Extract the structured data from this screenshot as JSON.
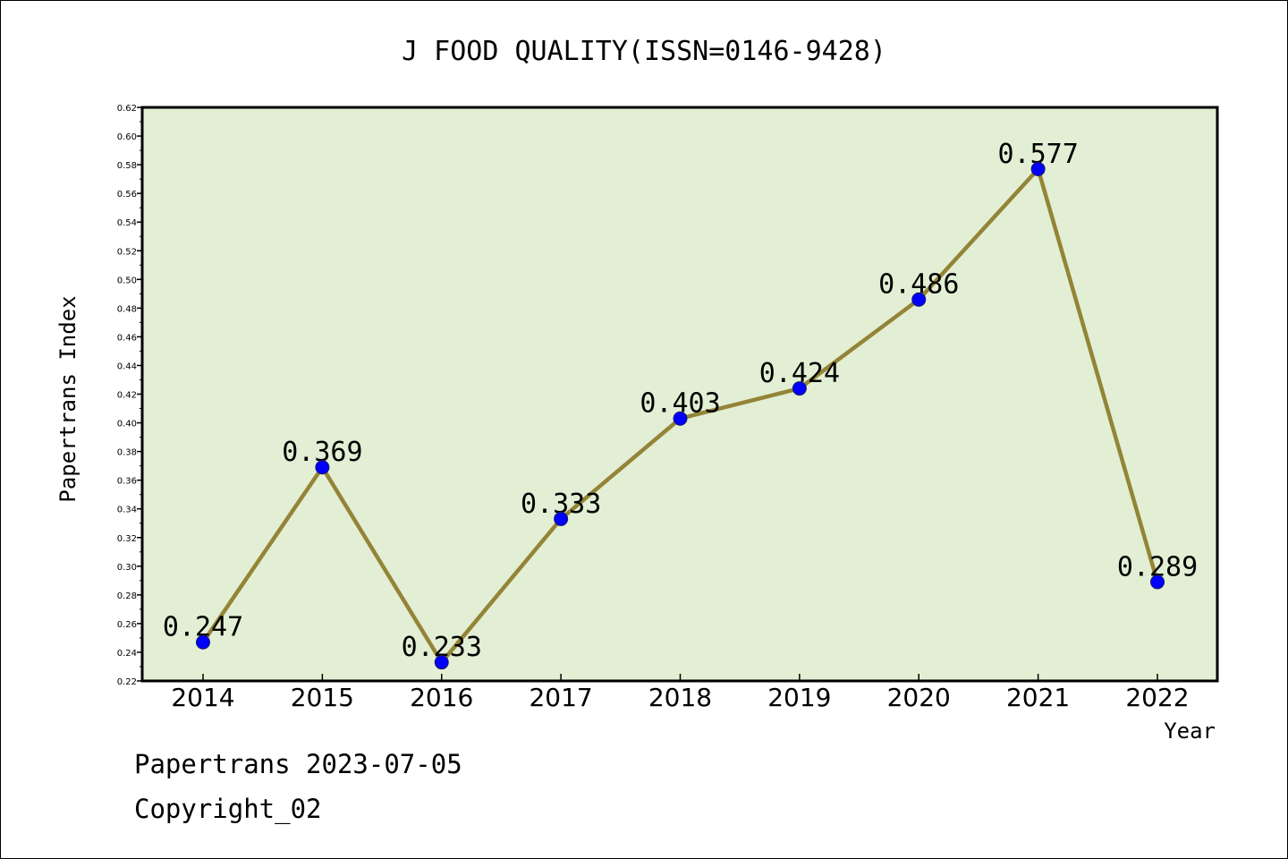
{
  "chart_data": {
    "type": "line",
    "title": "J FOOD QUALITY(ISSN=0146-9428)",
    "xlabel": "Year",
    "ylabel": "Papertrans Index",
    "categories": [
      "2014",
      "2015",
      "2016",
      "2017",
      "2018",
      "2019",
      "2020",
      "2021",
      "2022"
    ],
    "series": [
      {
        "values": [
          0.247,
          0.369,
          0.233,
          0.333,
          0.403,
          0.424,
          0.486,
          0.577,
          0.289
        ],
        "labels": [
          "0.247",
          "0.369",
          "0.233",
          "0.333",
          "0.403",
          "0.424",
          "0.486",
          "0.577",
          "0.289"
        ]
      }
    ],
    "ylim": [
      0.22,
      0.62
    ],
    "yticks": [
      "0.22",
      "0.24",
      "0.26",
      "0.28",
      "0.30",
      "0.32",
      "0.34",
      "0.36",
      "0.38",
      "0.40",
      "0.42",
      "0.44",
      "0.46",
      "0.48",
      "0.50",
      "0.52",
      "0.54",
      "0.56",
      "0.58",
      "0.60",
      "0.62"
    ],
    "grid": false,
    "colors": {
      "plot_background": "#e2efd5",
      "line": "#948437",
      "marker": "#0000ff"
    }
  },
  "footer": {
    "line1": "Papertrans 2023-07-05",
    "line2": "Copyright_02"
  }
}
